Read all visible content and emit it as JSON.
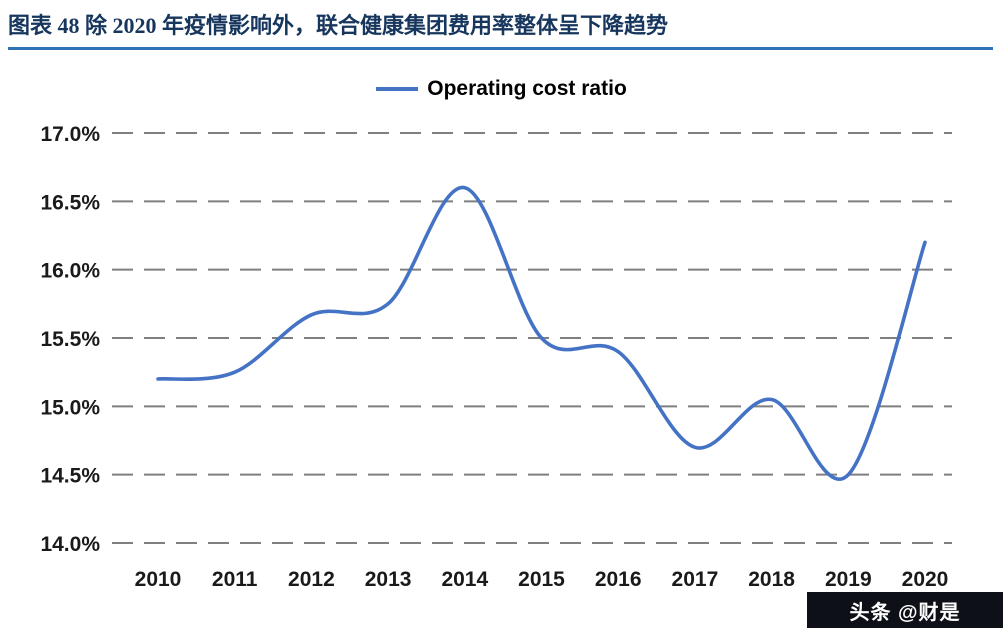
{
  "header": {
    "title": "图表 48 除 2020 年疫情影响外，联合健康集团费用率整体呈下降趋势"
  },
  "watermark": {
    "text": "头条 @财是"
  },
  "colors": {
    "title_text": "#17365D",
    "title_underline": "#2E74B5",
    "series_line": "#4472C4",
    "gridline": "#7F7F7F",
    "watermark_bg": "#0D1117"
  },
  "chart_data": {
    "type": "line",
    "title": "图表 48 除 2020 年疫情影响外，联合健康集团费用率整体呈下降趋势",
    "legend_position": "top",
    "smooth": true,
    "grid": "dashed horizontal",
    "categories": [
      "2010",
      "2011",
      "2012",
      "2013",
      "2014",
      "2015",
      "2016",
      "2017",
      "2018",
      "2019",
      "2020"
    ],
    "series": [
      {
        "name": "Operating cost ratio",
        "values": [
          15.2,
          15.25,
          15.67,
          15.75,
          16.6,
          15.5,
          15.4,
          14.7,
          15.05,
          14.5,
          16.2
        ]
      }
    ],
    "xlabel": "",
    "ylabel": "",
    "ylim": [
      14.0,
      17.0
    ],
    "ytick_step": 0.5,
    "ytick_labels": [
      "14.0%",
      "14.5%",
      "15.0%",
      "15.5%",
      "16.0%",
      "16.5%",
      "17.0%"
    ],
    "line_color": "#4472C4",
    "grid_color": "#7F7F7F"
  }
}
